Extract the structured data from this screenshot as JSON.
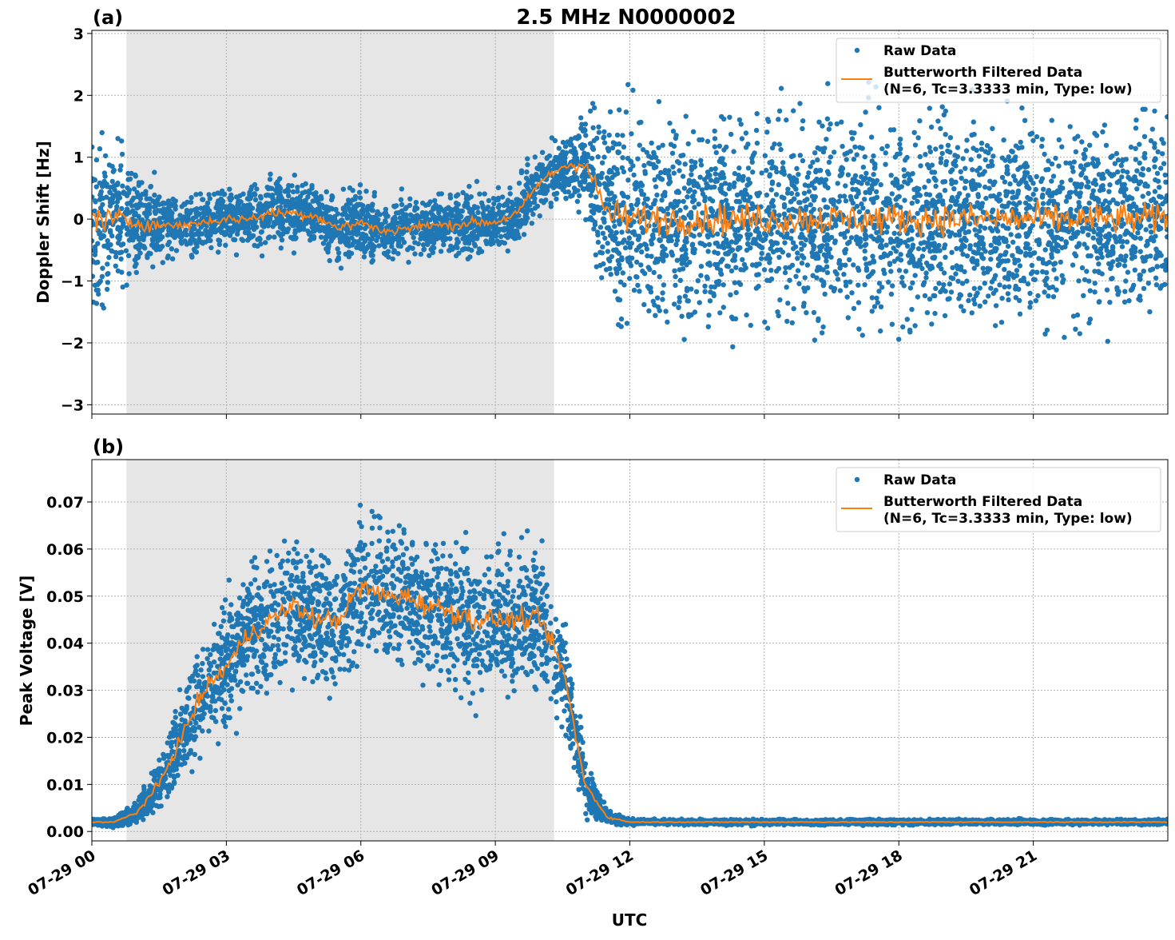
{
  "title": "2.5 MHz N0000002",
  "colors": {
    "raw": "#1f77b4",
    "filtered": "#ff7f0e",
    "shade": "#e6e6e6"
  },
  "chart_data": [
    {
      "panel_label": "(a)",
      "type": "scatter+line",
      "ylabel": "Doppler Shift [Hz]",
      "ylim": [
        -3.15,
        3.05
      ],
      "yticks": [
        -3,
        -2,
        -1,
        0,
        1,
        2,
        3
      ],
      "ytick_labels": [
        "−3",
        "−2",
        "−1",
        "0",
        "1",
        "2",
        "3"
      ],
      "xlim_hours": [
        0,
        24
      ],
      "grid": true,
      "legend_position": "top-right",
      "shaded_interval_hours": [
        0.77,
        10.31
      ],
      "series": [
        {
          "name": "Raw Data",
          "kind": "scatter"
        },
        {
          "name": "Butterworth Filtered Data\n(N=6, Tc=3.3333 min, Type: low)",
          "kind": "line"
        }
      ],
      "legend": [
        "Raw Data",
        "Butterworth Filtered Data",
        "(N=6, Tc=3.3333 min, Type: low)"
      ],
      "x_hours": [
        0,
        0.5,
        1,
        1.5,
        2,
        2.5,
        3,
        3.5,
        4,
        4.5,
        5,
        5.5,
        6,
        6.5,
        7,
        7.5,
        8,
        8.5,
        9,
        9.5,
        10,
        10.5,
        11,
        11.5,
        12,
        12.5,
        13,
        13.5,
        14,
        14.5,
        15,
        15.5,
        16,
        16.5,
        17,
        17.5,
        18,
        18.5,
        19,
        19.5,
        20,
        20.5,
        21,
        21.5,
        22,
        22.5,
        23,
        23.5,
        24
      ],
      "filtered": [
        0.0,
        0.0,
        -0.05,
        -0.1,
        -0.1,
        -0.05,
        0.0,
        0.0,
        0.1,
        0.1,
        0.05,
        -0.15,
        -0.05,
        -0.2,
        -0.15,
        -0.1,
        -0.1,
        -0.05,
        -0.05,
        0.1,
        0.6,
        0.85,
        0.9,
        0.1,
        0.0,
        0.0,
        0.0,
        0.0,
        0.0,
        0.0,
        0.0,
        0.0,
        0.0,
        0.0,
        0.0,
        0.0,
        0.0,
        0.0,
        0.0,
        0.0,
        0.0,
        0.0,
        0.0,
        0.0,
        0.0,
        0.0,
        0.0,
        0.0,
        0.0
      ],
      "raw_spread": [
        1.2,
        1.0,
        0.8,
        0.45,
        0.4,
        0.4,
        0.4,
        0.4,
        0.45,
        0.45,
        0.4,
        0.45,
        0.45,
        0.4,
        0.4,
        0.4,
        0.4,
        0.4,
        0.4,
        0.4,
        0.45,
        0.4,
        0.7,
        1.3,
        1.4,
        1.4,
        1.4,
        1.4,
        1.4,
        1.4,
        1.4,
        1.4,
        1.4,
        1.4,
        1.4,
        1.4,
        1.4,
        1.4,
        1.4,
        1.4,
        1.4,
        1.4,
        1.4,
        1.4,
        1.4,
        1.4,
        1.4,
        1.4,
        1.4
      ]
    },
    {
      "panel_label": "(b)",
      "type": "scatter+line",
      "ylabel": "Peak Voltage [V]",
      "xlabel": "UTC",
      "ylim": [
        -0.002,
        0.079
      ],
      "yticks": [
        0,
        0.01,
        0.02,
        0.03,
        0.04,
        0.05,
        0.06,
        0.07
      ],
      "ytick_labels": [
        "0.00",
        "0.01",
        "0.02",
        "0.03",
        "0.04",
        "0.05",
        "0.06",
        "0.07"
      ],
      "xlim_hours": [
        0,
        24
      ],
      "xticks_hours": [
        0,
        3,
        6,
        9,
        12,
        15,
        18,
        21
      ],
      "xtick_labels": [
        "07-29 00",
        "07-29 03",
        "07-29 06",
        "07-29 09",
        "07-29 12",
        "07-29 15",
        "07-29 18",
        "07-29 21"
      ],
      "grid": true,
      "legend_position": "top-right",
      "shaded_interval_hours": [
        0.77,
        10.31
      ],
      "legend": [
        "Raw Data",
        "Butterworth Filtered Data",
        "(N=6, Tc=3.3333 min, Type: low)"
      ],
      "x_hours": [
        0,
        0.5,
        1,
        1.5,
        2,
        2.5,
        3,
        3.5,
        4,
        4.5,
        5,
        5.5,
        6,
        6.5,
        7,
        7.5,
        8,
        8.5,
        9,
        9.5,
        10,
        10.5,
        11,
        11.5,
        12,
        12.5,
        13,
        13.5,
        14,
        14.5,
        15,
        15.5,
        16,
        16.5,
        17,
        17.5,
        18,
        18.5,
        19,
        19.5,
        20,
        20.5,
        21,
        21.5,
        22,
        22.5,
        23,
        23.5,
        24
      ],
      "filtered": [
        0.002,
        0.002,
        0.004,
        0.01,
        0.02,
        0.03,
        0.035,
        0.042,
        0.045,
        0.048,
        0.045,
        0.045,
        0.052,
        0.05,
        0.05,
        0.048,
        0.047,
        0.045,
        0.045,
        0.045,
        0.045,
        0.035,
        0.01,
        0.003,
        0.002,
        0.002,
        0.002,
        0.002,
        0.002,
        0.002,
        0.002,
        0.002,
        0.002,
        0.002,
        0.002,
        0.002,
        0.002,
        0.002,
        0.002,
        0.002,
        0.002,
        0.002,
        0.002,
        0.002,
        0.002,
        0.002,
        0.002,
        0.002,
        0.002
      ],
      "raw_spread": [
        0.0006,
        0.0008,
        0.002,
        0.005,
        0.008,
        0.01,
        0.012,
        0.012,
        0.012,
        0.012,
        0.012,
        0.012,
        0.013,
        0.013,
        0.012,
        0.013,
        0.013,
        0.013,
        0.012,
        0.012,
        0.012,
        0.01,
        0.005,
        0.0012,
        0.0005,
        0.0005,
        0.0005,
        0.0005,
        0.0005,
        0.0005,
        0.0005,
        0.0005,
        0.0005,
        0.0005,
        0.0005,
        0.0005,
        0.0005,
        0.0005,
        0.0005,
        0.0005,
        0.0005,
        0.0005,
        0.0005,
        0.0005,
        0.0005,
        0.0005,
        0.0005,
        0.0005,
        0.0005
      ]
    }
  ]
}
